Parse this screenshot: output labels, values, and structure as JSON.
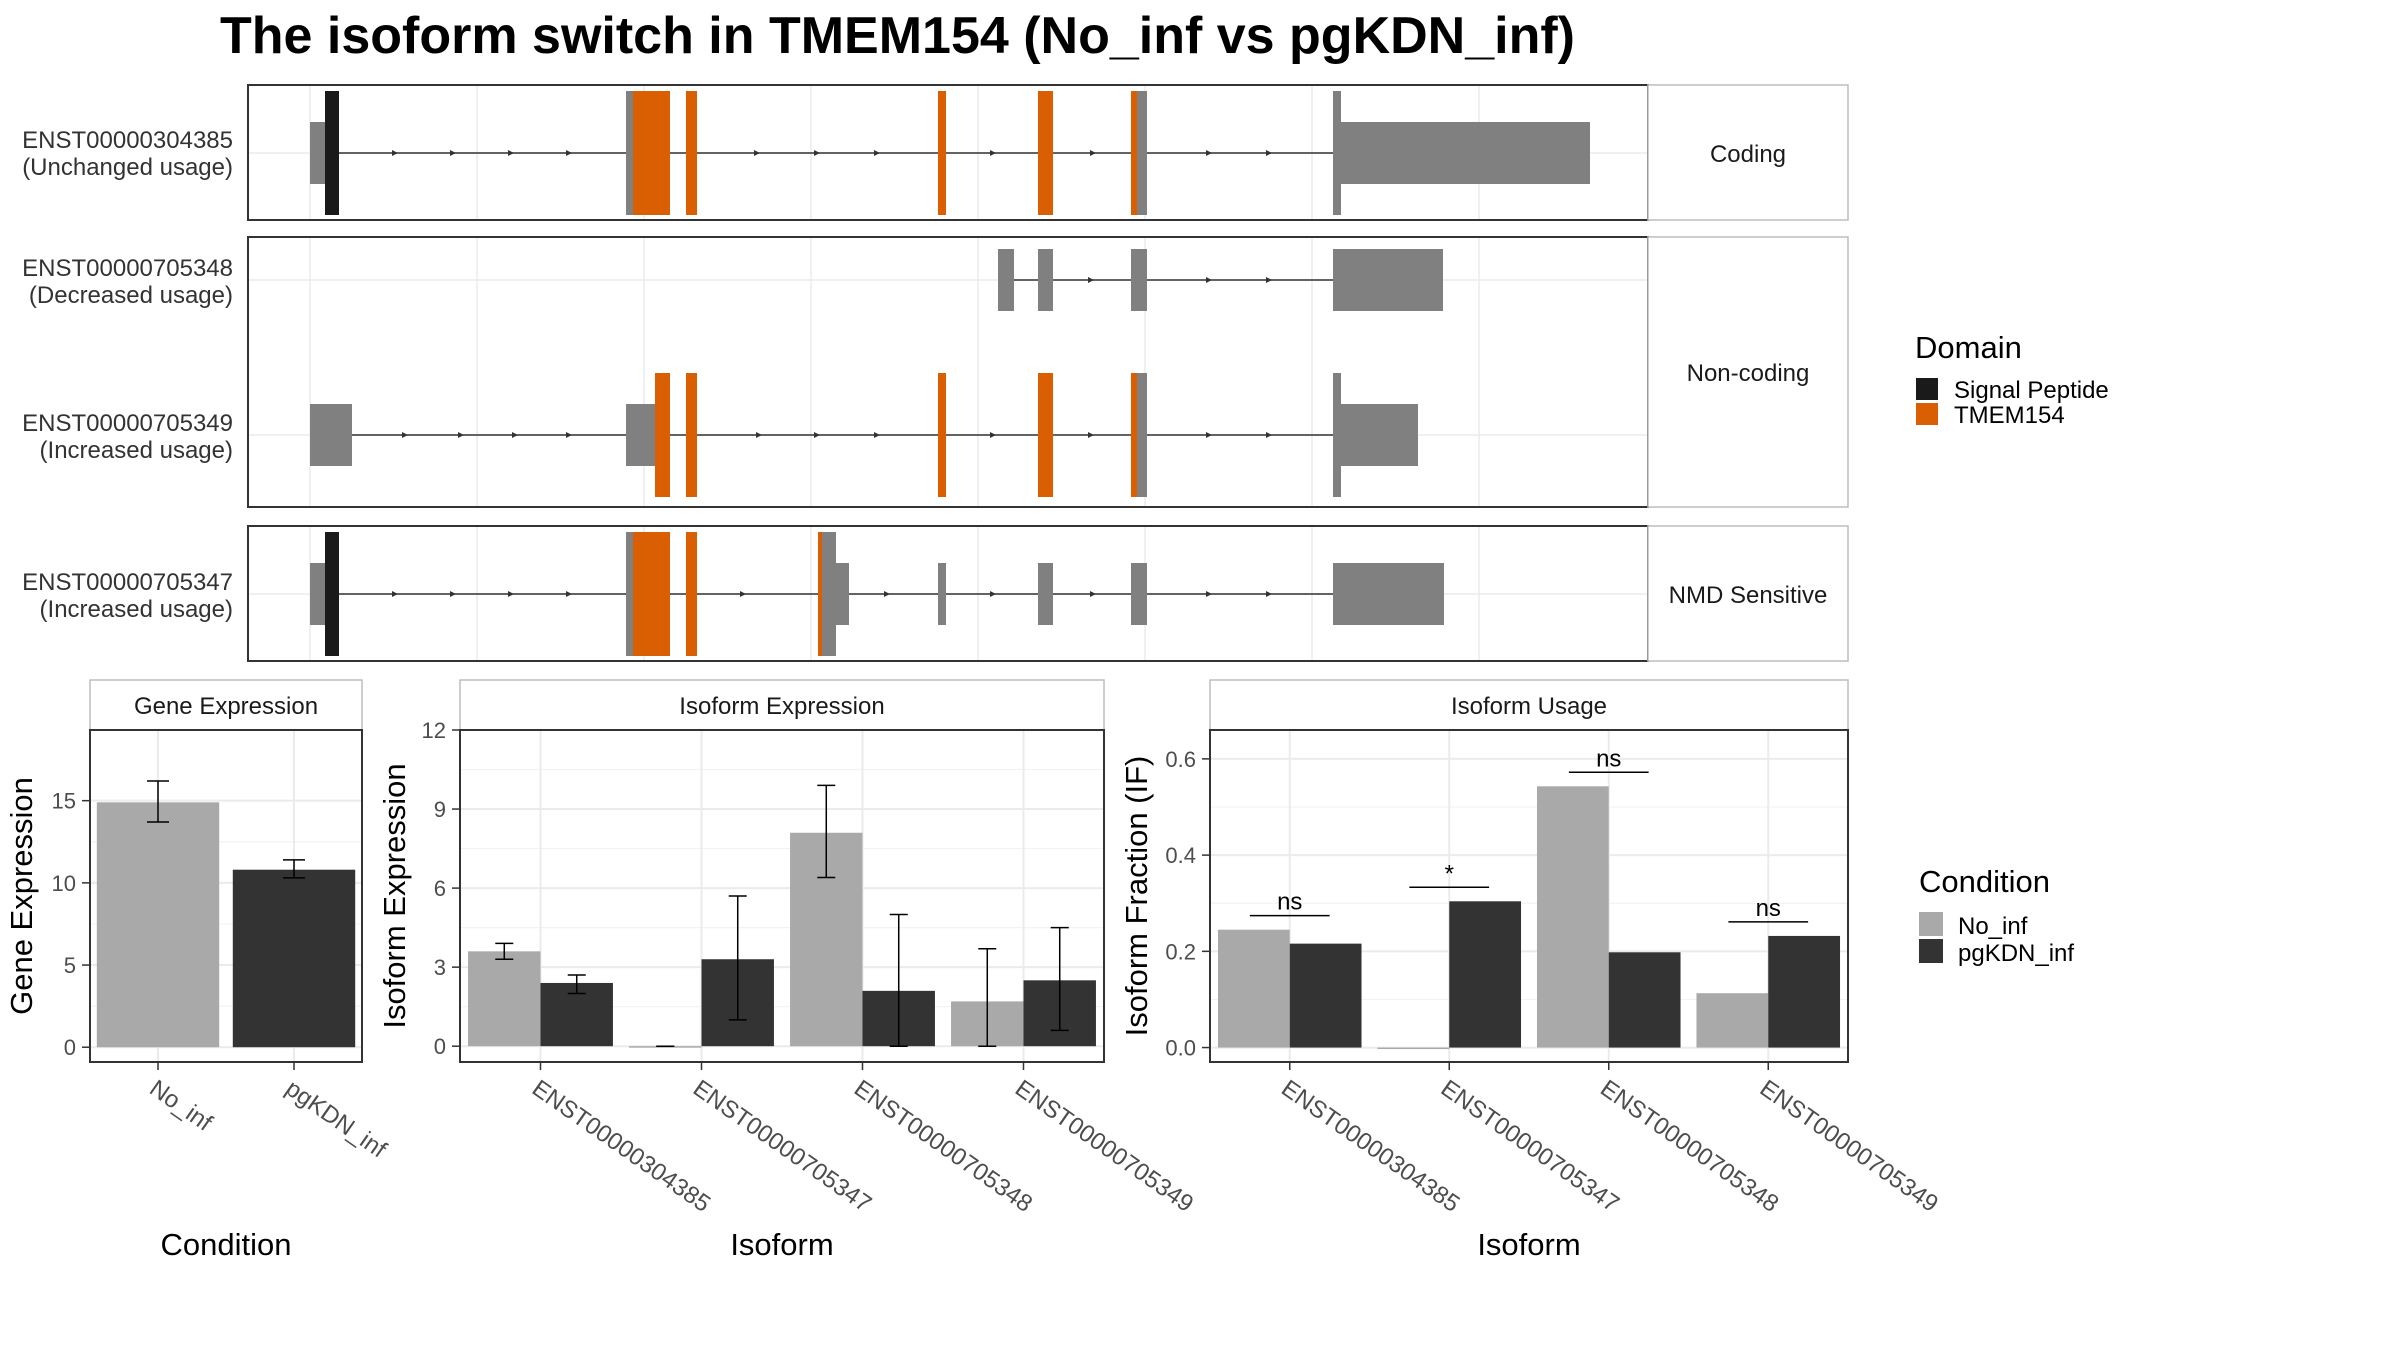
{
  "title": "The isoform switch in TMEM154 (No_inf vs pgKDN_inf)",
  "colors": {
    "signal_peptide": "#1a1a1a",
    "tmem154": "#d95f02",
    "exon": "#808080",
    "no_inf": "#a9a9a9",
    "pgkdn_inf": "#333333"
  },
  "structure": {
    "facets": [
      {
        "label": "Coding",
        "transcripts": [
          {
            "id": "ENST00000304385",
            "usage": "(Unchanged usage)"
          }
        ]
      },
      {
        "label": "Non-coding",
        "transcripts": [
          {
            "id": "ENST00000705348",
            "usage": "(Decreased usage)"
          },
          {
            "id": "ENST00000705349",
            "usage": "(Increased usage)"
          }
        ]
      },
      {
        "label": "NMD Sensitive",
        "transcripts": [
          {
            "id": "ENST00000705347",
            "usage": "(Increased usage)"
          }
        ]
      }
    ],
    "legend_title": "Domain",
    "legend_items": [
      {
        "label": "Signal Peptide",
        "color": "#1a1a1a"
      },
      {
        "label": "TMEM154",
        "color": "#d95f02"
      }
    ]
  },
  "condition_legend": {
    "title": "Condition",
    "items": [
      {
        "label": "No_inf",
        "color": "#a9a9a9"
      },
      {
        "label": "pgKDN_inf",
        "color": "#333333"
      }
    ]
  },
  "chart_data": [
    {
      "type": "bar",
      "title": "Gene Expression",
      "xlabel": "Condition",
      "ylabel": "Gene Expression",
      "categories": [
        "No_inf",
        "pgKDN_inf"
      ],
      "values": [
        14.9,
        10.8
      ],
      "error": [
        [
          13.7,
          16.2
        ],
        [
          10.3,
          11.4
        ]
      ],
      "ylim": [
        -0.9,
        19.3
      ],
      "yticks": [
        0,
        5,
        10,
        15
      ]
    },
    {
      "type": "bar",
      "title": "Isoform Expression",
      "xlabel": "Isoform",
      "ylabel": "Isoform Expression",
      "categories": [
        "ENST00000304385",
        "ENST00000705347",
        "ENST00000705348",
        "ENST00000705349"
      ],
      "series": [
        {
          "name": "No_inf",
          "values": [
            3.6,
            0.0,
            8.1,
            1.7
          ],
          "error": [
            [
              3.3,
              3.9
            ],
            [
              0.0,
              0.0
            ],
            [
              6.4,
              9.9
            ],
            [
              0.0,
              3.7
            ]
          ]
        },
        {
          "name": "pgKDN_inf",
          "values": [
            2.4,
            3.3,
            2.1,
            2.5
          ],
          "error": [
            [
              2.0,
              2.7
            ],
            [
              1.0,
              5.7
            ],
            [
              0.0,
              5.0
            ],
            [
              0.6,
              4.5
            ]
          ]
        }
      ],
      "ylim": [
        -0.6,
        12.0
      ],
      "yticks": [
        0,
        3,
        6,
        9,
        12
      ]
    },
    {
      "type": "bar",
      "title": "Isoform Usage",
      "xlabel": "Isoform",
      "ylabel": "Isoform Fraction (IF)",
      "categories": [
        "ENST00000304385",
        "ENST00000705347",
        "ENST00000705348",
        "ENST00000705349"
      ],
      "series": [
        {
          "name": "No_inf",
          "values": [
            0.245,
            0.0,
            0.543,
            0.113
          ]
        },
        {
          "name": "pgKDN_inf",
          "values": [
            0.216,
            0.304,
            0.198,
            0.232
          ]
        }
      ],
      "significance": [
        "ns",
        "*",
        "ns",
        "ns"
      ],
      "ylim": [
        -0.03,
        0.66
      ],
      "yticks": [
        0.0,
        0.2,
        0.4,
        0.6
      ],
      "ytick_labels": [
        "0.0",
        "0.2",
        "0.4",
        "0.6"
      ]
    }
  ]
}
